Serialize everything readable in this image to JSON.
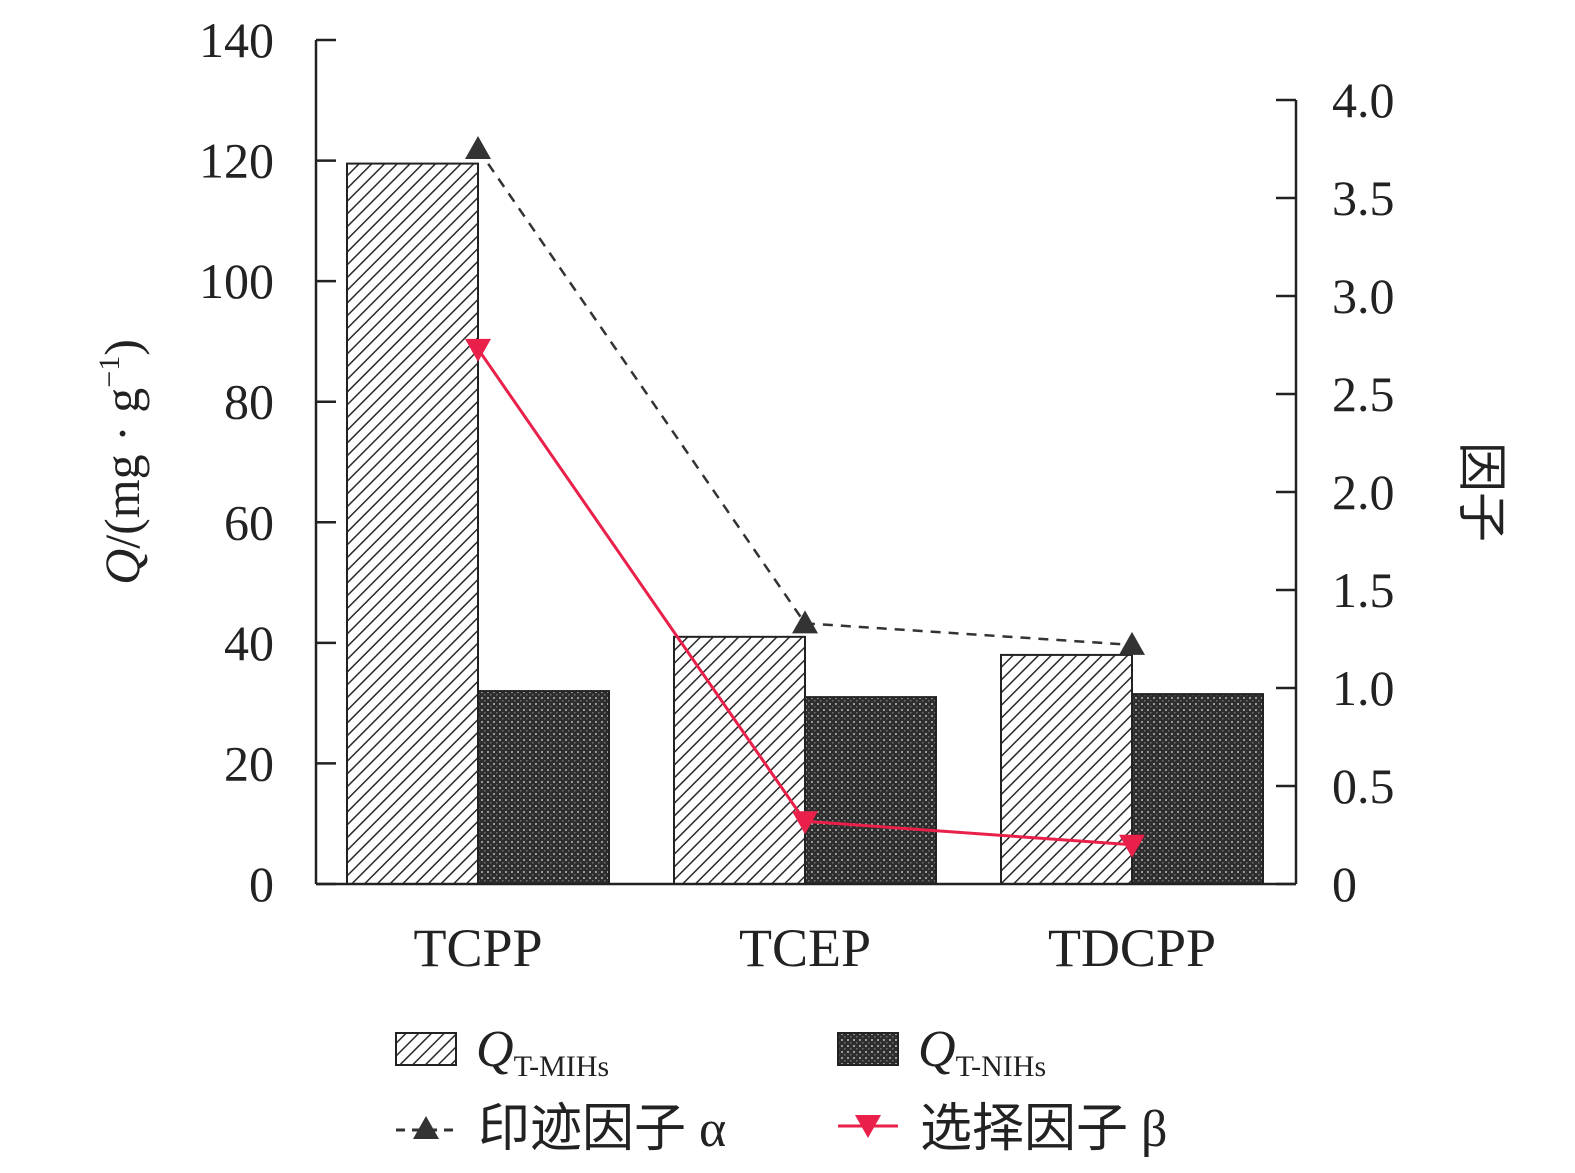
{
  "chart_data": {
    "type": "bar",
    "categories": [
      "TCPP",
      "TCEP",
      "TDCPP"
    ],
    "series": [
      {
        "name": "Q",
        "name_sub": "T-MIHs",
        "axis": "left",
        "kind": "bar",
        "pattern": "hatch",
        "values": [
          119.5,
          41,
          38
        ]
      },
      {
        "name": "Q",
        "name_sub": "T-NIHs",
        "axis": "left",
        "kind": "bar",
        "pattern": "dots",
        "values": [
          32,
          31,
          31.5
        ]
      },
      {
        "name": "印迹因子 α",
        "axis": "right",
        "kind": "line",
        "style": "dashed",
        "marker": "triangle-up",
        "color": "#333333",
        "values": [
          3.75,
          1.33,
          1.22
        ]
      },
      {
        "name": "选择因子 β",
        "axis": "right",
        "kind": "line",
        "style": "solid",
        "marker": "triangle-down",
        "color": "#e8204a",
        "values": [
          2.73,
          0.32,
          0.2
        ]
      }
    ],
    "y_left": {
      "label_italic": "Q",
      "label_rest": "/(mg · g",
      "label_sup": "−1",
      "label_close": ")",
      "ylim": [
        0,
        140
      ],
      "ticks": [
        "0",
        "20",
        "40",
        "60",
        "80",
        "100",
        "120",
        "140"
      ]
    },
    "y_right": {
      "label": "因子",
      "ylim": [
        0,
        4.0
      ],
      "ticks": [
        "0",
        "0.5",
        "1.0",
        "1.5",
        "2.0",
        "2.5",
        "3.0",
        "3.5",
        "4.0"
      ]
    },
    "grid": false,
    "legend_position": "bottom"
  }
}
